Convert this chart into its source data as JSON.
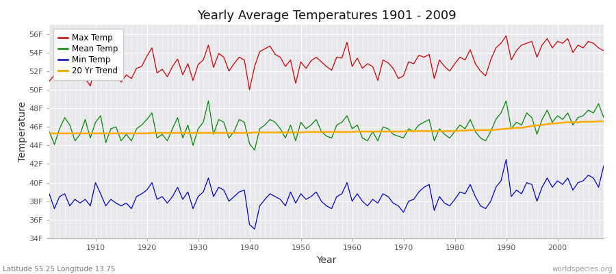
{
  "title": "Yearly Average Temperatures 1901 - 2009",
  "xlabel": "Year",
  "ylabel": "Temperature",
  "subtitle_lat": "Latitude 55.25 Longitude 13.75",
  "watermark": "worldspecies.org",
  "ylim": [
    34,
    57
  ],
  "yticks": [
    34,
    36,
    38,
    40,
    42,
    44,
    46,
    48,
    50,
    52,
    54,
    56
  ],
  "ytick_labels": [
    "34F",
    "36F",
    "38F",
    "40F",
    "42F",
    "44F",
    "46F",
    "48F",
    "50F",
    "52F",
    "54F",
    "56F"
  ],
  "years": [
    1901,
    1902,
    1903,
    1904,
    1905,
    1906,
    1907,
    1908,
    1909,
    1910,
    1911,
    1912,
    1913,
    1914,
    1915,
    1916,
    1917,
    1918,
    1919,
    1920,
    1921,
    1922,
    1923,
    1924,
    1925,
    1926,
    1927,
    1928,
    1929,
    1930,
    1931,
    1932,
    1933,
    1934,
    1935,
    1936,
    1937,
    1938,
    1939,
    1940,
    1941,
    1942,
    1943,
    1944,
    1945,
    1946,
    1947,
    1948,
    1949,
    1950,
    1951,
    1952,
    1953,
    1954,
    1955,
    1956,
    1957,
    1958,
    1959,
    1960,
    1961,
    1962,
    1963,
    1964,
    1965,
    1966,
    1967,
    1968,
    1969,
    1970,
    1971,
    1972,
    1973,
    1974,
    1975,
    1976,
    1977,
    1978,
    1979,
    1980,
    1981,
    1982,
    1983,
    1984,
    1985,
    1986,
    1987,
    1988,
    1989,
    1990,
    1991,
    1992,
    1993,
    1994,
    1995,
    1996,
    1997,
    1998,
    1999,
    2000,
    2001,
    2002,
    2003,
    2004,
    2005,
    2006,
    2007,
    2008,
    2009
  ],
  "max_temp": [
    50.9,
    51.6,
    51.5,
    53.9,
    51.8,
    51.1,
    51.4,
    51.2,
    50.4,
    52.7,
    54.3,
    51.4,
    52.8,
    52.0,
    50.8,
    51.6,
    51.2,
    52.3,
    52.5,
    53.6,
    54.5,
    51.8,
    52.2,
    51.4,
    52.5,
    53.3,
    51.6,
    52.8,
    51.0,
    52.7,
    53.2,
    54.8,
    52.4,
    53.9,
    53.5,
    52.0,
    52.8,
    53.5,
    53.2,
    50.0,
    52.5,
    54.1,
    54.4,
    54.7,
    53.8,
    53.5,
    52.5,
    53.2,
    50.7,
    53.0,
    52.3,
    53.1,
    53.5,
    53.0,
    52.5,
    52.1,
    53.5,
    53.4,
    55.1,
    52.5,
    53.4,
    52.3,
    52.8,
    52.5,
    51.0,
    53.2,
    52.9,
    52.3,
    51.2,
    51.5,
    53.0,
    52.8,
    53.7,
    53.5,
    53.8,
    51.2,
    53.2,
    52.5,
    52.0,
    52.8,
    53.5,
    53.2,
    54.3,
    52.8,
    52.0,
    51.5,
    53.2,
    54.5,
    55.0,
    55.8,
    53.2,
    54.2,
    54.8,
    55.0,
    55.2,
    53.5,
    54.8,
    55.5,
    54.5,
    55.2,
    55.0,
    55.5,
    54.0,
    54.8,
    54.5,
    55.2,
    55.0,
    54.5,
    54.2
  ],
  "mean_temp": [
    45.5,
    44.1,
    45.8,
    47.0,
    46.2,
    44.5,
    45.2,
    46.8,
    44.8,
    46.5,
    47.2,
    44.3,
    45.8,
    46.0,
    44.5,
    45.2,
    44.5,
    45.8,
    46.2,
    46.8,
    47.5,
    44.8,
    45.2,
    44.5,
    45.8,
    47.0,
    44.8,
    46.2,
    44.0,
    45.8,
    46.5,
    48.8,
    45.2,
    46.8,
    46.5,
    44.8,
    45.5,
    46.8,
    46.5,
    44.2,
    43.5,
    45.8,
    46.2,
    46.8,
    46.5,
    45.8,
    44.8,
    46.2,
    44.5,
    46.5,
    45.8,
    46.2,
    46.8,
    45.5,
    45.0,
    44.8,
    46.2,
    46.5,
    47.2,
    45.8,
    46.2,
    44.8,
    44.5,
    45.5,
    44.5,
    46.0,
    45.8,
    45.2,
    45.0,
    44.8,
    45.8,
    45.5,
    46.2,
    46.5,
    46.8,
    44.5,
    45.8,
    45.2,
    44.8,
    45.5,
    46.2,
    45.8,
    46.8,
    45.5,
    44.8,
    44.5,
    45.5,
    46.8,
    47.5,
    48.8,
    45.8,
    46.5,
    46.2,
    47.5,
    47.0,
    45.2,
    46.8,
    47.8,
    46.5,
    47.2,
    46.8,
    47.5,
    46.2,
    47.0,
    47.2,
    47.8,
    47.5,
    48.5,
    47.0
  ],
  "min_temp": [
    38.8,
    37.2,
    38.5,
    38.8,
    37.5,
    38.2,
    37.8,
    38.2,
    37.5,
    40.0,
    38.8,
    37.5,
    38.2,
    37.8,
    37.5,
    37.8,
    37.2,
    38.5,
    38.8,
    39.2,
    40.0,
    38.2,
    38.5,
    37.8,
    38.5,
    39.5,
    38.2,
    39.0,
    37.2,
    38.5,
    39.0,
    40.5,
    38.5,
    39.5,
    39.2,
    38.0,
    38.5,
    39.0,
    39.2,
    35.5,
    35.0,
    37.5,
    38.2,
    38.8,
    38.5,
    38.2,
    37.5,
    39.0,
    37.8,
    38.8,
    38.2,
    38.5,
    39.0,
    38.0,
    37.5,
    37.2,
    38.5,
    38.8,
    40.0,
    38.0,
    38.8,
    38.0,
    37.5,
    38.2,
    37.8,
    38.8,
    38.5,
    37.8,
    37.5,
    36.8,
    38.0,
    38.2,
    39.0,
    39.5,
    39.8,
    37.0,
    38.5,
    37.8,
    37.5,
    38.2,
    39.0,
    38.8,
    39.8,
    38.5,
    37.5,
    37.2,
    38.0,
    39.5,
    40.2,
    42.5,
    38.5,
    39.2,
    38.8,
    40.0,
    39.8,
    38.0,
    39.5,
    40.5,
    39.5,
    40.2,
    39.8,
    40.5,
    39.2,
    40.0,
    40.2,
    40.8,
    40.5,
    39.5,
    41.8
  ],
  "trend_20yr": [
    45.3,
    45.3,
    45.3,
    45.3,
    45.3,
    45.3,
    45.3,
    45.3,
    45.3,
    45.3,
    45.3,
    45.3,
    45.3,
    45.3,
    45.3,
    45.3,
    45.3,
    45.3,
    45.3,
    45.3,
    45.35,
    45.35,
    45.35,
    45.35,
    45.35,
    45.35,
    45.35,
    45.35,
    45.35,
    45.35,
    45.35,
    45.35,
    45.35,
    45.35,
    45.35,
    45.35,
    45.35,
    45.35,
    45.35,
    45.35,
    45.4,
    45.4,
    45.4,
    45.4,
    45.4,
    45.4,
    45.4,
    45.4,
    45.4,
    45.4,
    45.45,
    45.45,
    45.45,
    45.45,
    45.45,
    45.45,
    45.45,
    45.45,
    45.45,
    45.45,
    45.5,
    45.5,
    45.5,
    45.5,
    45.5,
    45.5,
    45.5,
    45.5,
    45.5,
    45.5,
    45.55,
    45.55,
    45.55,
    45.55,
    45.55,
    45.55,
    45.55,
    45.55,
    45.55,
    45.55,
    45.6,
    45.6,
    45.65,
    45.65,
    45.65,
    45.65,
    45.65,
    45.7,
    45.75,
    45.8,
    45.85,
    45.9,
    45.9,
    46.0,
    46.1,
    46.15,
    46.2,
    46.3,
    46.35,
    46.4,
    46.45,
    46.5,
    46.5,
    46.5,
    46.55,
    46.55,
    46.55,
    46.6,
    46.6
  ],
  "colors": {
    "max_temp": "#cc0000",
    "mean_temp": "#008800",
    "min_temp": "#0000cc",
    "trend": "#ffaa00",
    "plot_bg": "#e8e8ec",
    "fig_bg": "#ffffff",
    "grid": "#ffffff"
  },
  "legend": {
    "max_label": "Max Temp",
    "mean_label": "Mean Temp",
    "min_label": "Min Temp",
    "trend_label": "20 Yr Trend"
  }
}
